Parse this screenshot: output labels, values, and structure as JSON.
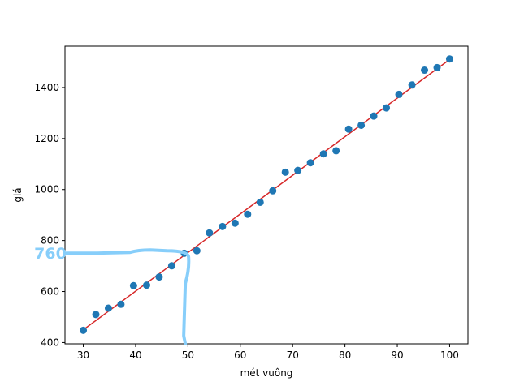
{
  "chart_data": {
    "type": "scatter",
    "xlabel": "mét vuông",
    "ylabel": "giá",
    "xlim": [
      26.5,
      103.5
    ],
    "ylim": [
      395,
      1562
    ],
    "x_ticks": [
      30,
      40,
      50,
      60,
      70,
      80,
      90,
      100
    ],
    "y_ticks": [
      400,
      600,
      800,
      1000,
      1200,
      1400
    ],
    "grid": false,
    "series": [
      {
        "kind": "points",
        "color": "#1f77b4",
        "points": [
          [
            30.0,
            448
          ],
          [
            32.4,
            510
          ],
          [
            34.8,
            535
          ],
          [
            37.2,
            550
          ],
          [
            39.6,
            623
          ],
          [
            42.1,
            625
          ],
          [
            44.5,
            657
          ],
          [
            46.9,
            701
          ],
          [
            49.3,
            750
          ],
          [
            51.7,
            760
          ],
          [
            54.1,
            830
          ],
          [
            56.6,
            855
          ],
          [
            59.0,
            868
          ],
          [
            61.4,
            903
          ],
          [
            63.8,
            950
          ],
          [
            66.2,
            995
          ],
          [
            68.6,
            1068
          ],
          [
            71.0,
            1075
          ],
          [
            73.4,
            1105
          ],
          [
            75.9,
            1140
          ],
          [
            78.3,
            1152
          ],
          [
            80.7,
            1237
          ],
          [
            83.1,
            1252
          ],
          [
            85.5,
            1288
          ],
          [
            87.9,
            1320
          ],
          [
            90.3,
            1373
          ],
          [
            92.8,
            1410
          ],
          [
            95.2,
            1468
          ],
          [
            97.6,
            1478
          ],
          [
            100.0,
            1512
          ]
        ]
      },
      {
        "kind": "fit-line",
        "color": "#d62728",
        "x": [
          30,
          100
        ],
        "y": [
          450,
          1510
        ]
      }
    ],
    "annotation": {
      "text": "760",
      "color": "#87cefa",
      "marked_x": 49.5,
      "marked_y": 760
    }
  }
}
